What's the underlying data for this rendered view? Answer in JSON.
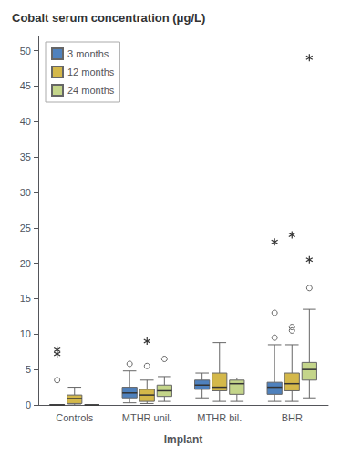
{
  "chart_data": {
    "type": "box",
    "title": "Cobalt serum concentration (μg/L)",
    "xlabel": "Implant",
    "ylim": [
      0,
      52
    ],
    "yticks": [
      0,
      5,
      10,
      15,
      20,
      25,
      30,
      35,
      40,
      45,
      50
    ],
    "grid": false,
    "legend": "upper left",
    "categories": [
      "Controls",
      "MTHR unil.",
      "MTHR bil.",
      "BHR"
    ],
    "series": [
      {
        "name": "3 months",
        "color": "#4f81bd",
        "values": [
          {
            "whislo": 0.0,
            "q1": 0.0,
            "med": 0.0,
            "q3": 0.05,
            "whishi": 0.0
          },
          {
            "whislo": 0.3,
            "q1": 1.0,
            "med": 1.7,
            "q3": 2.5,
            "whishi": 4.8
          },
          {
            "whislo": 1.0,
            "q1": 2.2,
            "med": 2.8,
            "q3": 3.5,
            "whishi": 4.5
          },
          {
            "whislo": 0.5,
            "q1": 1.5,
            "med": 2.5,
            "q3": 3.2,
            "whishi": 8.5
          }
        ],
        "outliers": [
          [
            3.5
          ],
          [
            5.8
          ],
          [],
          [
            9.5,
            13.0
          ]
        ],
        "extreme_outliers": [
          [
            7.2,
            7.8
          ],
          [],
          [],
          [
            23.0
          ]
        ]
      },
      {
        "name": "12 months",
        "color": "#d4b84a",
        "values": [
          {
            "whislo": 0.0,
            "q1": 0.2,
            "med": 0.9,
            "q3": 1.4,
            "whishi": 2.5
          },
          {
            "whislo": 0.2,
            "q1": 0.5,
            "med": 1.4,
            "q3": 2.2,
            "whishi": 3.5
          },
          {
            "whislo": 0.5,
            "q1": 2.0,
            "med": 2.5,
            "q3": 4.5,
            "whishi": 8.8
          },
          {
            "whislo": 0.5,
            "q1": 2.0,
            "med": 3.0,
            "q3": 4.5,
            "whishi": 8.5
          }
        ],
        "outliers": [
          [],
          [
            5.5
          ],
          [],
          [
            10.5,
            11.0
          ]
        ],
        "extreme_outliers": [
          [],
          [
            9.0
          ],
          [],
          [
            24.0
          ]
        ]
      },
      {
        "name": "24 months",
        "color": "#c4d58a",
        "values": [
          {
            "whislo": 0.0,
            "q1": 0.0,
            "med": 0.0,
            "q3": 0.0,
            "whishi": 0.0
          },
          {
            "whislo": 0.5,
            "q1": 1.2,
            "med": 2.0,
            "q3": 2.8,
            "whishi": 4.0
          },
          {
            "whislo": 0.5,
            "q1": 1.5,
            "med": 3.0,
            "q3": 3.5,
            "whishi": 3.8
          },
          {
            "whislo": 1.0,
            "q1": 3.5,
            "med": 5.0,
            "q3": 6.0,
            "whishi": 13.5
          }
        ],
        "outliers": [
          [],
          [
            6.5
          ],
          [],
          [
            16.5
          ]
        ],
        "extreme_outliers": [
          [],
          [],
          [],
          [
            20.5,
            49.0
          ]
        ]
      }
    ]
  }
}
